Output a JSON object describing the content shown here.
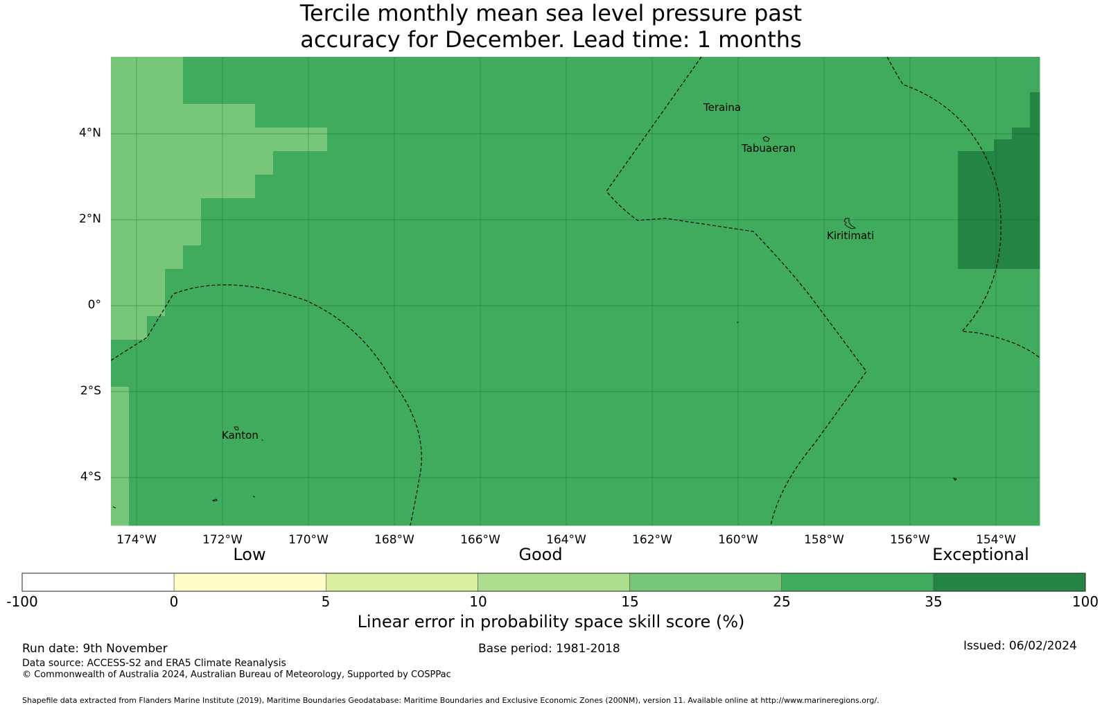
{
  "title": {
    "line1": "Tercile monthly mean sea level pressure past",
    "line2": "accuracy for December. Lead time: 1 months"
  },
  "map": {
    "x_ticks": [
      "174°W",
      "172°W",
      "170°W",
      "168°W",
      "166°W",
      "164°W",
      "162°W",
      "160°W",
      "158°W",
      "156°W",
      "154°W"
    ],
    "y_ticks": [
      "4°N",
      "2°N",
      "0°",
      "2°S",
      "4°S"
    ],
    "places": [
      {
        "name": "Teraina"
      },
      {
        "name": "Tabuaeran"
      },
      {
        "name": "Kiritimati"
      },
      {
        "name": "Kanton"
      }
    ],
    "grid_rows": [
      "2222333333333333333333333333333333333333333333333333",
      "2222333333333333333333333333333333333333333333333333",
      "2222333333333333333333333333333333333333333333333333",
      "2222333333333333333333333333333333333333333333333334",
      "2222222233333333333333333333333333333333333333333334",
      "2222222233333333333333333333333333333333333333333334",
      "2222222222223333333333333333333333333333333333333344",
      "2222222222223333333333333333333333333333333333333444",
      "2222222223333333333333333333333333333333333333344444",
      "2222222223333333333333333333333333333333333333344444",
      "2222222233333333333333333333333333333333333333344444",
      "2222222233333333333333333333333333333333333333344444",
      "2222233333333333333333333333333333333333333333344444",
      "2222233333333333333333333333333333333333333333344444",
      "2222233333333333333333333333333333333333333333344444",
      "2222233333333333333333333333333333333333333333344444",
      "2222333333333333333333333333333333333333333333344444",
      "2222333333333333333333333333333333333333333333344444",
      "2223333333333333333333333333333333333333333333333333",
      "2223333333333333333333333333333333333333333333333333",
      "2223333333333333333333333333333333333333333333333333",
      "2223333333333333333333333333333333333333333333333333",
      "2233333333333333333333333333333333333333333333333333",
      "2233333333333333333333333333333333333333333333333333",
      "3333333333333333333333333333333333333333333333333333",
      "3333333333333333333333333333333333333333333333333333",
      "3333333333333333333333333333333333333333333333333333",
      "3333333333333333333333333333333333333333333333333333",
      "2333333333333333333333333333333333333333333333333333",
      "2333333333333333333333333333333333333333333333333333",
      "2333333333333333333333333333333333333333333333333333",
      "2333333333333333333333333333333333333333333333333333",
      "2333333333333333333333333333333333333333333333333333",
      "2333333333333333333333333333333333333333333333333333",
      "2333333333333333333333333333333333333333333333333333",
      "2333333333333333333333333333333333333333333333333333",
      "2333333333333333333333333333333333333333333333333333",
      "2333333333333333333333333333333333333333333333333333",
      "2333333333333333333333333333333333333333333333333333",
      "2333333333333333333333333333333333333333333333333333"
    ],
    "grid_rows_note": "",
    "grid_levels": [
      "#ffffff",
      "#fffdc9",
      "#d9ee9e",
      "#78c679",
      "#41ab5d",
      "#238443"
    ]
  },
  "colorbar": {
    "categories": [
      "Low",
      "Good",
      "Exceptional"
    ],
    "ticks": [
      "-100",
      "0",
      "5",
      "10",
      "15",
      "25",
      "35",
      "100"
    ],
    "colors": [
      "#ffffff",
      "#fffdc9",
      "#d9ee9e",
      "#addd8e",
      "#78c679",
      "#41ab5d",
      "#238443"
    ],
    "label": "Linear error in probability space skill score (%)"
  },
  "footer": {
    "run_date": "Run date: 9th November",
    "base_period": "Base period: 1981-2018",
    "issued": "Issued: 06/02/2024",
    "data_source": "Data source: ACCESS-S2 and ERA5 Climate Reanalysis",
    "copyright": "© Commonwealth of Australia 2024, Australian Bureau of Meteorology, Supported by COSPPac",
    "shapefile": "Shapefile data extracted from Flanders Marine Institute (2019), Maritime Boundaries Geodatabase: Maritime Boundaries and Exclusive Economic Zones (200NM), version 11. Available online at http://www.marineregions.org/."
  }
}
